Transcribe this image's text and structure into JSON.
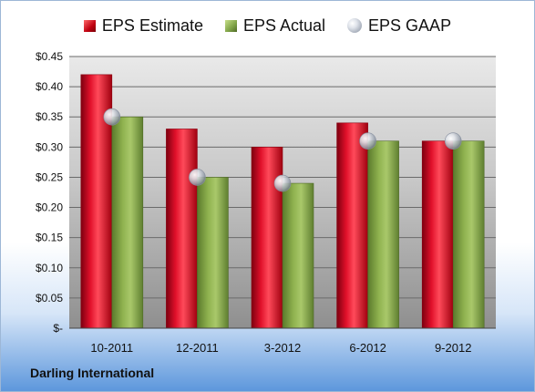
{
  "legend": {
    "estimate": "EPS Estimate",
    "actual": "EPS Actual",
    "gaap": "EPS GAAP"
  },
  "footer": {
    "company": "Darling International"
  },
  "colors": {
    "estimate": "#c0001a",
    "actual": "#7ea246",
    "gaap": "#b8bec8"
  },
  "chart_data": {
    "type": "bar",
    "categories": [
      "10-2011",
      "12-2011",
      "3-2012",
      "6-2012",
      "9-2012"
    ],
    "series": [
      {
        "name": "EPS Estimate",
        "values": [
          0.42,
          0.33,
          0.3,
          0.34,
          0.31
        ]
      },
      {
        "name": "EPS Actual",
        "values": [
          0.35,
          0.25,
          0.24,
          0.31,
          0.31
        ]
      },
      {
        "name": "EPS GAAP",
        "values": [
          0.35,
          0.25,
          0.24,
          0.31,
          0.31
        ],
        "style": "marker"
      }
    ],
    "ylim": [
      0,
      0.45
    ],
    "ytick_labels": [
      "$-",
      "$0.05",
      "$0.10",
      "$0.15",
      "$0.20",
      "$0.25",
      "$0.30",
      "$0.35",
      "$0.40",
      "$0.45"
    ],
    "grid": true,
    "legend_position": "top"
  }
}
